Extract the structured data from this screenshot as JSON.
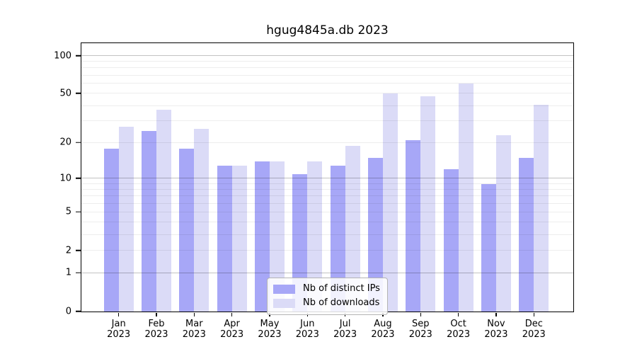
{
  "title": "hgug4845a.db 2023",
  "chart_data": {
    "type": "bar",
    "title": "hgug4845a.db 2023",
    "categories": [
      "Jan",
      "Feb",
      "Mar",
      "Apr",
      "May",
      "Jun",
      "Jul",
      "Aug",
      "Sep",
      "Oct",
      "Nov",
      "Dec"
    ],
    "year": "2023",
    "series": [
      {
        "name": "Nb of distinct IPs",
        "color": "#a7a7f7",
        "values": [
          18,
          25,
          18,
          13,
          14,
          11,
          13,
          15,
          21,
          12,
          9,
          15
        ]
      },
      {
        "name": "Nb of downloads",
        "color": "#dbdbf7",
        "values": [
          27,
          37,
          26,
          13,
          14,
          14,
          19,
          50,
          48,
          60,
          23,
          41
        ]
      }
    ],
    "xlabel": "",
    "ylabel": "",
    "yscale": "log1p",
    "yticks": [
      100,
      50,
      20,
      10,
      5,
      2,
      1,
      0
    ],
    "major_gridlines": [
      1,
      10,
      100
    ],
    "minor_gridlines": [
      2,
      3,
      4,
      5,
      6,
      7,
      8,
      9,
      20,
      30,
      40,
      50,
      60,
      70,
      80,
      90
    ],
    "ylim": [
      0,
      130
    ],
    "grid": "on",
    "legend_position": "bottom-center"
  }
}
